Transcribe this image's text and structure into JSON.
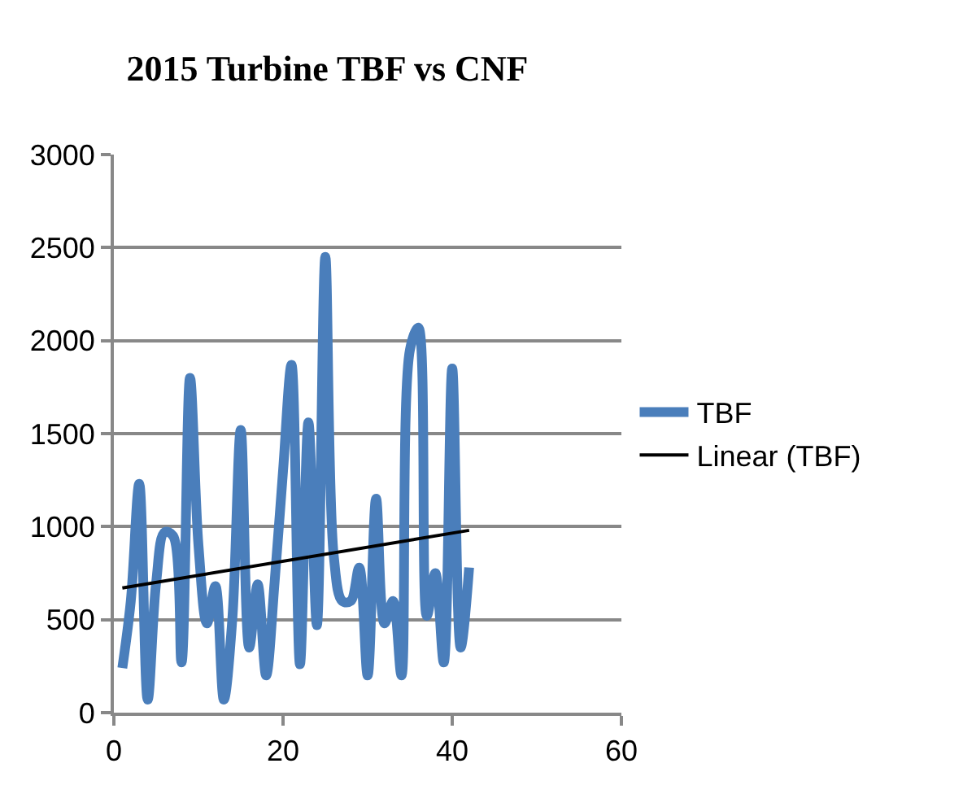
{
  "chart_data": {
    "type": "line",
    "title": "2015 Turbine TBF vs CNF",
    "x": [
      1,
      2,
      3,
      4,
      5,
      6,
      7,
      8,
      9,
      10,
      11,
      12,
      13,
      14,
      15,
      16,
      17,
      18,
      19,
      20,
      21,
      22,
      23,
      24,
      25,
      26,
      27,
      28,
      29,
      30,
      31,
      32,
      33,
      34,
      35,
      36,
      37,
      38,
      39,
      40,
      41,
      42
    ],
    "series": [
      {
        "name": "TBF",
        "color": "#4a7ebb",
        "values": [
          240,
          600,
          1230,
          70,
          700,
          970,
          950,
          270,
          1800,
          900,
          480,
          680,
          70,
          500,
          1520,
          350,
          690,
          200,
          700,
          1300,
          1870,
          260,
          1560,
          470,
          2450,
          840,
          600,
          600,
          780,
          200,
          1150,
          480,
          600,
          200,
          1950,
          2070,
          520,
          750,
          270,
          1850,
          350,
          780
        ]
      },
      {
        "name": "Linear (TBF)",
        "color": "#000000",
        "type": "line",
        "x": [
          1,
          42
        ],
        "values": [
          670,
          980
        ]
      }
    ],
    "xlim": [
      0,
      60
    ],
    "xticks": [
      0,
      20,
      40,
      60
    ],
    "ylim": [
      0,
      3000
    ],
    "yticks": [
      0,
      500,
      1000,
      1500,
      2000,
      2500,
      3000
    ],
    "grid": "y",
    "legend": "right"
  }
}
